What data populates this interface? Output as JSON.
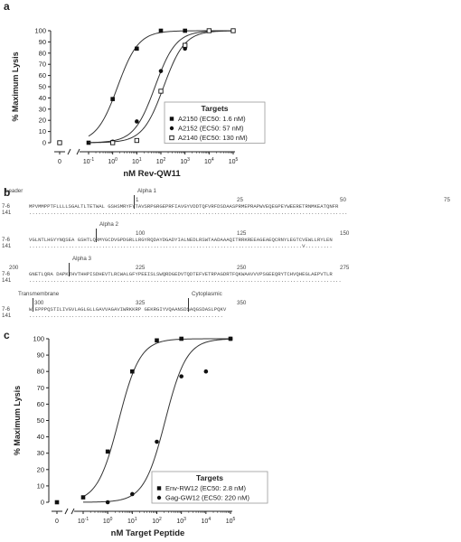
{
  "panel_labels": {
    "a": "a",
    "b": "b",
    "c": "c"
  },
  "panel_b": {
    "row_labels": [
      "7-6",
      "141"
    ],
    "blocks": [
      {
        "numbers": [
          {
            "text": "1"
          },
          {
            "text": "25"
          },
          {
            "text": "50"
          },
          {
            "text": "75"
          }
        ],
        "domains": [
          {
            "text": "Leader"
          },
          {
            "text": "Alpha 1"
          }
        ],
        "seq": "MPVMMPPTFLLLLSGALTLTETWAL GSHSMRYFYTAVSRPGRGEPRFIAVGYVDDTQFVRFDSDAASPRMEPRAPWVEQEGPEYWEERETRNMKEATQNFR",
        "dots": "........................................................................................................."
      },
      {
        "numbers": [
          {
            "text": "100"
          },
          {
            "text": "125"
          },
          {
            "text": "150"
          }
        ],
        "domains": [
          {
            "text": "Alpha 2"
          }
        ],
        "seq": "VGLNTLHGYYNQSEA GSHTLQRMYGCDVGPDGRLLRGYRQDAYDGADYIALNEDLRSWTAADAAAQITRRKREEAGEAEQCRNYLEGTCVEWLLRYLEN",
        "dots": "..........................................................................................V.........",
        "mark": "V"
      },
      {
        "numbers": [
          {
            "text": "200"
          },
          {
            "text": "225"
          },
          {
            "text": "250"
          },
          {
            "text": "275"
          }
        ],
        "domains": [
          {
            "text": "Alpha 3"
          }
        ],
        "seq": "GNETLQRA DAPKTHVTHHPISDHEVTLRCWALGFYPEEISLSWQRDGEDVTQDTEFVETRPAGDRTFQKWAAVVVPSGEEQRYTCHVQHEGLAEPVTLR",
        "dots": "......................................................................................................."
      },
      {
        "numbers": [
          {
            "text": "300"
          },
          {
            "text": "325"
          },
          {
            "text": "350"
          }
        ],
        "domains": [
          {
            "text": "Transmembrane"
          },
          {
            "text": "Cytoplasmic"
          }
        ],
        "seq": "W EPPPQSTILIVGVLAGLGLLGAVVAGAVIWRKKRP GEKRGIYVQAANSDSAQGSDASLPQKV",
        "dots": "................................................................"
      }
    ]
  },
  "chart_data": [
    {
      "type": "scatter",
      "panel": "a",
      "xlabel": "nM Rev-QW11",
      "ylabel": "% Maximum Lysis",
      "x_scale": "log",
      "x_ticks": [
        {
          "label": "0",
          "value": 0
        },
        {
          "label": "10⁻¹",
          "value": 0.1
        },
        {
          "label": "10⁰",
          "value": 1
        },
        {
          "label": "10¹",
          "value": 10
        },
        {
          "label": "10²",
          "value": 100
        },
        {
          "label": "10³",
          "value": 1000
        },
        {
          "label": "10⁴",
          "value": 10000
        },
        {
          "label": "10⁵",
          "value": 100000
        }
      ],
      "ylim": [
        0,
        100
      ],
      "y_ticks": [
        0,
        10,
        20,
        30,
        40,
        50,
        60,
        70,
        80,
        90,
        100
      ],
      "legend_title": "Targets",
      "legend_position": "bottom-right",
      "series": [
        {
          "name": "A2150 (EC50: 1.6 nM)",
          "marker": "filled-square",
          "ec50": 1.6,
          "points": [
            {
              "x": 0,
              "y": 0
            },
            {
              "x": 0.1,
              "y": 0
            },
            {
              "x": 1,
              "y": 39
            },
            {
              "x": 10,
              "y": 84
            },
            {
              "x": 100,
              "y": 100
            },
            {
              "x": 1000,
              "y": 100
            },
            {
              "x": 10000,
              "y": 100
            },
            {
              "x": 100000,
              "y": 100
            }
          ]
        },
        {
          "name": "A2152 (EC50: 57 nM)",
          "marker": "filled-circle",
          "ec50": 57,
          "points": [
            {
              "x": 0,
              "y": 0
            },
            {
              "x": 1,
              "y": 1
            },
            {
              "x": 10,
              "y": 19
            },
            {
              "x": 100,
              "y": 64
            },
            {
              "x": 1000,
              "y": 84
            },
            {
              "x": 10000,
              "y": 100
            },
            {
              "x": 100000,
              "y": 100
            }
          ]
        },
        {
          "name": "A2140 (EC50: 130 nM)",
          "marker": "open-square",
          "ec50": 130,
          "points": [
            {
              "x": 0,
              "y": 0
            },
            {
              "x": 1,
              "y": 0
            },
            {
              "x": 10,
              "y": 2
            },
            {
              "x": 100,
              "y": 46
            },
            {
              "x": 1000,
              "y": 87
            },
            {
              "x": 10000,
              "y": 100
            },
            {
              "x": 100000,
              "y": 100
            }
          ]
        }
      ]
    },
    {
      "type": "scatter",
      "panel": "c",
      "xlabel": "nM Target Peptide",
      "ylabel": "% Maximum Lysis",
      "x_scale": "log",
      "x_ticks": [
        {
          "label": "0",
          "value": 0
        },
        {
          "label": "10⁻¹",
          "value": 0.1
        },
        {
          "label": "10⁰",
          "value": 1
        },
        {
          "label": "10¹",
          "value": 10
        },
        {
          "label": "10²",
          "value": 100
        },
        {
          "label": "10³",
          "value": 1000
        },
        {
          "label": "10⁴",
          "value": 10000
        },
        {
          "label": "10⁵",
          "value": 100000
        }
      ],
      "ylim": [
        0,
        100
      ],
      "y_ticks": [
        0,
        10,
        20,
        30,
        40,
        50,
        60,
        70,
        80,
        90,
        100
      ],
      "legend_title": "Targets",
      "legend_position": "bottom-right",
      "series": [
        {
          "name": "Env-RW12 (EC50: 2.8 nM)",
          "marker": "filled-square",
          "ec50": 2.8,
          "points": [
            {
              "x": 0,
              "y": 0
            },
            {
              "x": 0.1,
              "y": 3
            },
            {
              "x": 1,
              "y": 31
            },
            {
              "x": 10,
              "y": 80
            },
            {
              "x": 100,
              "y": 99
            },
            {
              "x": 1000,
              "y": 100
            },
            {
              "x": 100000,
              "y": 100
            }
          ]
        },
        {
          "name": "Gag-GW12 (EC50: 220 nM)",
          "marker": "filled-circle",
          "ec50": 220,
          "points": [
            {
              "x": 1,
              "y": 0
            },
            {
              "x": 10,
              "y": 5
            },
            {
              "x": 100,
              "y": 37
            },
            {
              "x": 1000,
              "y": 77
            },
            {
              "x": 10000,
              "y": 80
            },
            {
              "x": 100000,
              "y": 100
            }
          ]
        }
      ]
    }
  ]
}
